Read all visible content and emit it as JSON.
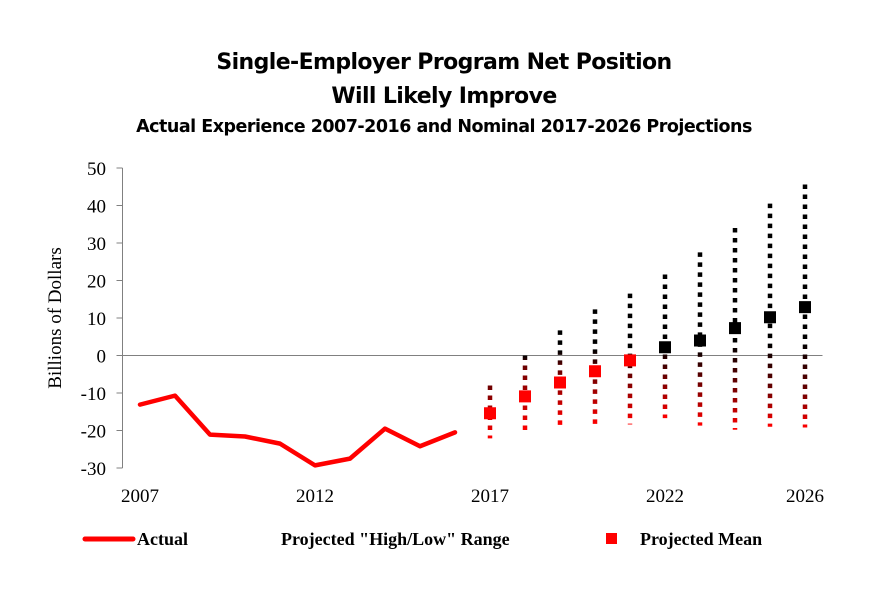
{
  "chart_data": {
    "type": "line",
    "title": "Single-Employer Program Net Position",
    "title_line2": "Will Likely Improve",
    "subtitle": "Actual Experience 2007-2016 and Nominal 2017-2026 Projections",
    "xlabel": "",
    "ylabel": "Billions of Dollars",
    "ylim": [
      -30,
      50
    ],
    "yticks": [
      50,
      40,
      30,
      20,
      10,
      0,
      -10,
      -20,
      -30
    ],
    "xlim": [
      2007,
      2026
    ],
    "xtick_labels": [
      "2007",
      "2012",
      "2017",
      "2022",
      "2026"
    ],
    "grid": false,
    "zero_line": true,
    "legend_position": "bottom",
    "colors": {
      "actual": "#ff0000",
      "range_top": "#000000",
      "range_bottom": "#ff0000",
      "mean_negative": "#ff0000",
      "mean_positive": "#000000",
      "axis": "#808080"
    },
    "series": [
      {
        "name": "Actual",
        "kind": "line",
        "x": [
          2007,
          2008,
          2009,
          2010,
          2011,
          2012,
          2013,
          2014,
          2015,
          2016
        ],
        "values": [
          -13.1,
          -10.7,
          -21.1,
          -21.6,
          -23.5,
          -29.3,
          -27.5,
          -19.5,
          -24.2,
          -20.5
        ]
      },
      {
        "name": "Projected \"High/Low\" Range",
        "kind": "range",
        "x": [
          2017,
          2018,
          2019,
          2020,
          2021,
          2022,
          2023,
          2024,
          2025,
          2026
        ],
        "high": [
          -8.0,
          0.0,
          6.7,
          12.3,
          16.5,
          21.6,
          27.5,
          34.0,
          40.5,
          45.6
        ],
        "low": [
          -22.1,
          -20.0,
          -18.5,
          -18.4,
          -18.4,
          -16.7,
          -18.7,
          -19.8,
          -19.0,
          -19.2
        ]
      },
      {
        "name": "Projected Mean",
        "kind": "marker",
        "x": [
          2017,
          2018,
          2019,
          2020,
          2021,
          2022,
          2023,
          2024,
          2025,
          2026
        ],
        "values": [
          -15.4,
          -10.9,
          -7.2,
          -4.2,
          -1.3,
          2.2,
          4.0,
          7.3,
          10.2,
          12.9
        ]
      }
    ],
    "legend": [
      "Actual",
      "Projected \"High/Low\" Range",
      "Projected Mean"
    ]
  }
}
